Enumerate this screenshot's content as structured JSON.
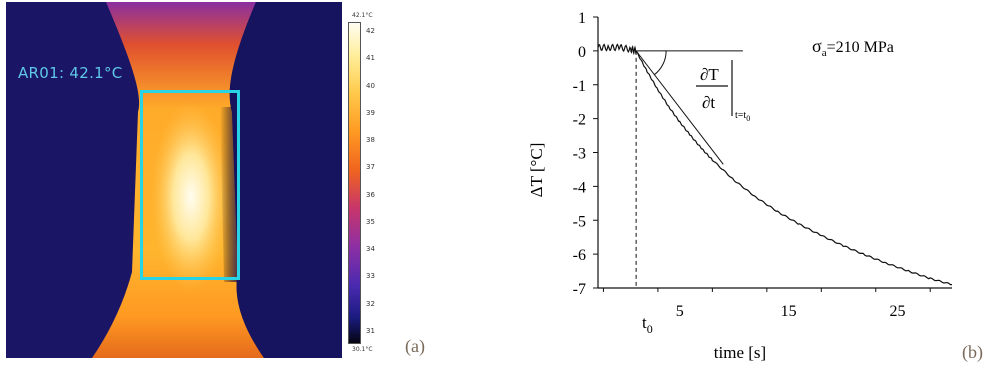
{
  "panel_a": {
    "roi_label": "AR01: 42.1°C",
    "colorbar": {
      "max_label": "42.1°C",
      "min_label": "30.1°C",
      "ticks": [
        "42",
        "41",
        "40",
        "39",
        "38",
        "37",
        "36",
        "35",
        "34",
        "33",
        "32",
        "31"
      ]
    },
    "caption": "(a)"
  },
  "panel_b": {
    "caption": "(b)",
    "t0_label": "t",
    "t0_subscript": "0",
    "stress_symbol": "σ",
    "stress_subscript": "a",
    "stress_value": "=210 MPa",
    "derivative_num": "∂T",
    "derivative_den": "∂t",
    "derivative_sub": "t=t",
    "derivative_sub0": "0"
  },
  "colors": {
    "roi": "#29d3e6",
    "curve": "#111111",
    "caption": "#7a6a5a"
  },
  "chart_data": {
    "type": "line",
    "title": "",
    "xlabel": "time [s]",
    "ylabel": "ΔT [°C]",
    "xlim": [
      -2.5,
      30
    ],
    "ylim": [
      -7,
      1
    ],
    "xticks": [
      "5",
      "15",
      "25"
    ],
    "xtick_values": [
      5,
      15,
      25
    ],
    "yticks": [
      "1",
      "0",
      "-1",
      "-2",
      "-3",
      "-4",
      "-5",
      "-6",
      "-7"
    ],
    "ytick_values": [
      1,
      0,
      -1,
      -2,
      -3,
      -4,
      -5,
      -6,
      -7
    ],
    "t0": 1,
    "series": [
      {
        "x": [
          -2.5,
          -1.5,
          -0.5,
          0.5,
          1,
          2,
          3,
          4,
          5,
          6,
          7,
          8,
          10,
          12,
          14,
          16,
          18,
          20,
          22,
          24,
          26,
          28,
          30
        ],
        "y": [
          0.1,
          0.1,
          0.1,
          0.05,
          0,
          -0.6,
          -1.15,
          -1.65,
          -2.1,
          -2.5,
          -2.88,
          -3.22,
          -3.82,
          -4.32,
          -4.75,
          -5.12,
          -5.45,
          -5.75,
          -6.02,
          -6.27,
          -6.5,
          -6.72,
          -6.9
        ]
      }
    ],
    "tangent": {
      "x": [
        1,
        9
      ],
      "y": [
        0,
        -3.35
      ]
    },
    "reference_line": {
      "x": [
        1,
        10.8
      ],
      "y": [
        0,
        0
      ]
    }
  }
}
